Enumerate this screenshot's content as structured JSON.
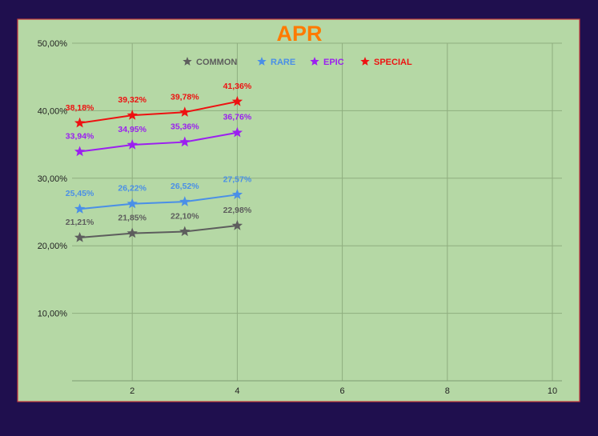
{
  "chart_data": {
    "type": "line",
    "title": "APR",
    "title_color": "#ff7a00",
    "xlim": [
      0,
      10
    ],
    "ylim": [
      0,
      50
    ],
    "x_ticks": [
      2,
      4,
      6,
      8,
      10
    ],
    "x_tick_labels": [
      "2",
      "4",
      "6",
      "8",
      "10"
    ],
    "y_ticks": [
      10,
      20,
      30,
      40,
      50
    ],
    "y_tick_labels": [
      "10,00%",
      "20,00%",
      "30,00%",
      "40,00%",
      "50,00%"
    ],
    "grid": true,
    "legend_position": "top-center",
    "background_color": "#b5d8a5",
    "series": [
      {
        "name": "COMMON",
        "color": "#5d5d5d",
        "x": [
          1,
          2,
          3,
          4
        ],
        "values": [
          21.21,
          21.85,
          22.1,
          22.98
        ],
        "labels": [
          "21,21%",
          "21,85%",
          "22,10%",
          "22,98%"
        ]
      },
      {
        "name": "RARE",
        "color": "#4a8fe7",
        "x": [
          1,
          2,
          3,
          4
        ],
        "values": [
          25.45,
          26.22,
          26.52,
          27.57
        ],
        "labels": [
          "25,45%",
          "26,22%",
          "26,52%",
          "27,57%"
        ]
      },
      {
        "name": "EPIC",
        "color": "#9b1ff0",
        "x": [
          1,
          2,
          3,
          4
        ],
        "values": [
          33.94,
          34.95,
          35.36,
          36.76
        ],
        "labels": [
          "33,94%",
          "34,95%",
          "35,36%",
          "36,76%"
        ]
      },
      {
        "name": "SPECIAL",
        "color": "#ee1111",
        "x": [
          1,
          2,
          3,
          4
        ],
        "values": [
          38.18,
          39.32,
          39.78,
          41.36
        ],
        "labels": [
          "38,18%",
          "39,32%",
          "39,78%",
          "41,36%"
        ]
      }
    ]
  }
}
